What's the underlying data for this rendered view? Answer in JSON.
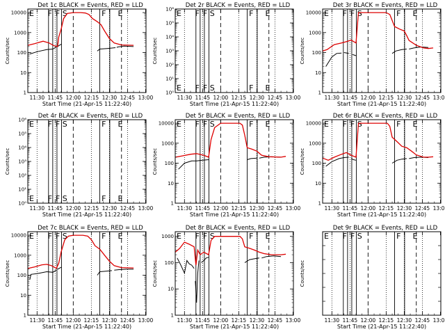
{
  "colors": {
    "events": "#000000",
    "lld": "#dd0000",
    "axis": "#000000"
  },
  "common": {
    "xlabel": "Start Time (21-Apr-15 11:22:40)",
    "ylabel": "Counts/sec",
    "xticks": [
      "11:30",
      "11:45",
      "12:00",
      "12:15",
      "12:30",
      "12:45",
      "13:00"
    ],
    "xrange_minutes": [
      -7.67,
      90.33
    ],
    "marker_letters": [
      {
        "t": -6.5,
        "label": "E"
      },
      {
        "t": 8.8,
        "label": "F"
      },
      {
        "t": 15.3,
        "label": "F"
      },
      {
        "t": 21.0,
        "label": "S"
      },
      {
        "t": 53.5,
        "label": "F"
      },
      {
        "t": 67.0,
        "label": "E"
      }
    ],
    "solid_lines": [
      9.5,
      13.0,
      16.5,
      20.3,
      52.0,
      60.3
    ],
    "dashed_lines": [
      30.0,
      70.0
    ],
    "dotted_lines": [
      0.0,
      15.0,
      45.0,
      60.0,
      75.0
    ]
  },
  "chart_data": [
    {
      "type": "line",
      "title": "Det 1c BLACK = Events, RED = LLD",
      "ylim": [
        1,
        15000
      ],
      "log": true,
      "yticks": [
        "1",
        "10",
        "100",
        "1000",
        "10000"
      ],
      "series": [
        {
          "name": "Events",
          "x": [
            -6,
            0,
            8,
            13,
            16
          ],
          "y": [
            85,
            110,
            140,
            150,
            190
          ]
        },
        {
          "name": "Events",
          "x": [
            17,
            18,
            20
          ],
          "y": [
            200,
            220,
            260
          ]
        },
        {
          "name": "Events",
          "x": [
            50,
            52,
            58,
            63,
            65
          ],
          "y": [
            120,
            150,
            160,
            170,
            175
          ]
        },
        {
          "name": "Events",
          "x": [
            66,
            67,
            72,
            80
          ],
          "y": [
            180,
            190,
            210,
            200
          ]
        },
        {
          "name": "LLD",
          "x": [
            -7.6,
            -2,
            5,
            10,
            14,
            17,
            18,
            20,
            22,
            25,
            30,
            36,
            40,
            43,
            46,
            50,
            53,
            56,
            60,
            64,
            70,
            80
          ],
          "y": [
            230,
            280,
            370,
            300,
            220,
            200,
            600,
            1500,
            5000,
            9000,
            10000,
            10000,
            9500,
            8000,
            5000,
            3500,
            2500,
            1200,
            500,
            300,
            240,
            230
          ]
        }
      ]
    },
    {
      "type": "line",
      "title": "Det 2r BLACK = Events, RED = LLD",
      "ylim": [
        1,
        1000000
      ],
      "log": true,
      "yticks": [
        "10⁰",
        "10¹",
        "10²",
        "10³",
        "10⁴",
        "10⁵",
        "10⁶"
      ],
      "series": []
    },
    {
      "type": "line",
      "title": "Det 3r BLACK = Events, RED = LLD",
      "ylim": [
        1,
        15000
      ],
      "log": true,
      "yticks": [
        "1",
        "10",
        "100",
        "1000",
        "10000"
      ],
      "series": [
        {
          "name": "Events",
          "x": [
            -5,
            0,
            4,
            8
          ],
          "y": [
            20,
            60,
            90,
            95
          ]
        },
        {
          "name": "Events",
          "x": [
            10,
            14
          ],
          "y": [
            100,
            90
          ]
        },
        {
          "name": "Events",
          "x": [
            17,
            20
          ],
          "y": [
            80,
            70
          ]
        },
        {
          "name": "Events",
          "x": [
            50,
            53,
            58,
            62
          ],
          "y": [
            90,
            120,
            140,
            150
          ]
        },
        {
          "name": "Events",
          "x": [
            64,
            68,
            74,
            80
          ],
          "y": [
            150,
            170,
            190,
            180
          ]
        },
        {
          "name": "LLD",
          "x": [
            -7.6,
            -4,
            2,
            8,
            12,
            16,
            20,
            22,
            30,
            40,
            45,
            48,
            52,
            56,
            60,
            62,
            64,
            70,
            76,
            80,
            84
          ],
          "y": [
            120,
            140,
            250,
            300,
            350,
            420,
            300,
            10000,
            10000,
            10000,
            10000,
            8000,
            2000,
            1500,
            1200,
            700,
            400,
            230,
            170,
            160,
            170
          ]
        }
      ]
    },
    {
      "type": "line",
      "title": "Det 4r BLACK = Events, RED = LLD",
      "ylim": [
        1,
        1000000
      ],
      "log": true,
      "yticks": [
        "10⁰",
        "10¹",
        "10²",
        "10³",
        "10⁴",
        "10⁵",
        "10⁶"
      ],
      "series": []
    },
    {
      "type": "line",
      "title": "Det 5r BLACK = Events, RED = LLD",
      "ylim": [
        1,
        15000
      ],
      "log": true,
      "yticks": [
        "1",
        "10",
        "100",
        "1000",
        "10000"
      ],
      "series": [
        {
          "name": "Events",
          "x": [
            -5,
            0,
            6,
            10,
            15,
            20
          ],
          "y": [
            50,
            100,
            130,
            130,
            140,
            150
          ]
        },
        {
          "name": "Events",
          "x": [
            52,
            55,
            60
          ],
          "y": [
            150,
            170,
            180
          ]
        },
        {
          "name": "Events",
          "x": [
            62,
            66,
            72,
            80
          ],
          "y": [
            180,
            200,
            210,
            200
          ]
        },
        {
          "name": "LLD",
          "x": [
            -7.6,
            -2,
            5,
            10,
            16,
            20,
            22,
            25,
            30,
            40,
            46,
            48,
            50,
            52,
            56,
            60,
            64,
            70,
            80,
            84
          ],
          "y": [
            200,
            230,
            280,
            300,
            250,
            200,
            1500,
            6000,
            10000,
            10000,
            10000,
            8000,
            2500,
            600,
            500,
            400,
            250,
            210,
            200,
            220
          ]
        }
      ]
    },
    {
      "type": "line",
      "title": "Det 6r BLACK = Events, RED = LLD",
      "ylim": [
        1,
        15000
      ],
      "log": true,
      "yticks": [
        "1",
        "10",
        "100",
        "1000",
        "10000"
      ],
      "series": [
        {
          "name": "Events",
          "x": [
            -5,
            0,
            6,
            10,
            14
          ],
          "y": [
            70,
            120,
            170,
            190,
            200
          ]
        },
        {
          "name": "Events",
          "x": [
            16,
            18,
            20
          ],
          "y": [
            170,
            150,
            140
          ]
        },
        {
          "name": "Events",
          "x": [
            50,
            54,
            58,
            62
          ],
          "y": [
            100,
            140,
            160,
            170
          ]
        },
        {
          "name": "Events",
          "x": [
            64,
            68,
            74,
            80
          ],
          "y": [
            170,
            190,
            200,
            190
          ]
        },
        {
          "name": "LLD",
          "x": [
            -7.6,
            -3,
            2,
            8,
            12,
            16,
            20,
            22,
            30,
            40,
            46,
            48,
            50,
            54,
            58,
            62,
            66,
            70,
            76,
            80,
            84
          ],
          "y": [
            180,
            140,
            200,
            280,
            340,
            250,
            200,
            10000,
            10000,
            10000,
            10000,
            7000,
            2000,
            1200,
            700,
            600,
            400,
            260,
            200,
            200,
            210
          ]
        }
      ]
    },
    {
      "type": "line",
      "title": "Det 7c BLACK = Events, RED = LLD",
      "ylim": [
        1,
        15000
      ],
      "log": true,
      "yticks": [
        "1",
        "10",
        "100",
        "1000",
        "10000"
      ],
      "series": [
        {
          "name": "Events",
          "x": [
            -6,
            -5,
            0,
            8,
            13,
            16
          ],
          "y": [
            60,
            110,
            120,
            150,
            140,
            180
          ]
        },
        {
          "name": "Events",
          "x": [
            17,
            20
          ],
          "y": [
            200,
            250
          ]
        },
        {
          "name": "Events",
          "x": [
            50,
            52,
            57,
            62
          ],
          "y": [
            100,
            150,
            160,
            170
          ]
        },
        {
          "name": "Events",
          "x": [
            64,
            68,
            74,
            80
          ],
          "y": [
            180,
            190,
            200,
            200
          ]
        },
        {
          "name": "LLD",
          "x": [
            -7.6,
            -2,
            4,
            8,
            12,
            16,
            18,
            20,
            23,
            26,
            30,
            38,
            42,
            45,
            48,
            52,
            56,
            60,
            64,
            70,
            80
          ],
          "y": [
            220,
            260,
            330,
            350,
            300,
            220,
            400,
            1500,
            6000,
            9000,
            10000,
            10000,
            9000,
            6000,
            3000,
            2000,
            1000,
            500,
            300,
            240,
            230
          ]
        }
      ]
    },
    {
      "type": "line",
      "title": "Det 8r BLACK = Events, RED = LLD",
      "ylim": [
        1,
        1500
      ],
      "log": true,
      "yticks": [
        "1",
        "10",
        "100",
        "1000"
      ],
      "series": [
        {
          "name": "Events",
          "x": [
            -6,
            -3,
            0,
            2,
            4,
            6,
            8
          ],
          "y": [
            150,
            80,
            40,
            120,
            90,
            80,
            60
          ]
        },
        {
          "name": "Events",
          "x": [
            9,
            10,
            11,
            12
          ],
          "y": [
            20,
            3,
            40,
            120
          ]
        },
        {
          "name": "Events",
          "x": [
            14,
            16,
            18,
            20
          ],
          "y": [
            100,
            120,
            150,
            160
          ]
        },
        {
          "name": "Events",
          "x": [
            50,
            54,
            58,
            62
          ],
          "y": [
            100,
            130,
            140,
            150
          ]
        },
        {
          "name": "Events",
          "x": [
            64,
            68,
            74,
            80
          ],
          "y": [
            150,
            170,
            180,
            170
          ]
        },
        {
          "name": "LLD",
          "x": [
            -7.6,
            -4,
            0,
            4,
            8,
            9.5,
            11,
            13,
            16,
            20,
            22,
            25,
            30,
            40,
            46,
            48,
            50,
            54,
            58,
            62,
            66,
            72,
            80,
            84
          ],
          "y": [
            250,
            350,
            600,
            500,
            400,
            80,
            300,
            200,
            250,
            200,
            700,
            1000,
            1000,
            1000,
            1000,
            800,
            400,
            350,
            300,
            250,
            220,
            200,
            200,
            210
          ]
        }
      ]
    },
    {
      "type": "line",
      "title": "Det 9r BLACK = Events, RED = LLD",
      "ylim": [
        1,
        1000000
      ],
      "log": true,
      "yticks": [],
      "series": []
    }
  ]
}
